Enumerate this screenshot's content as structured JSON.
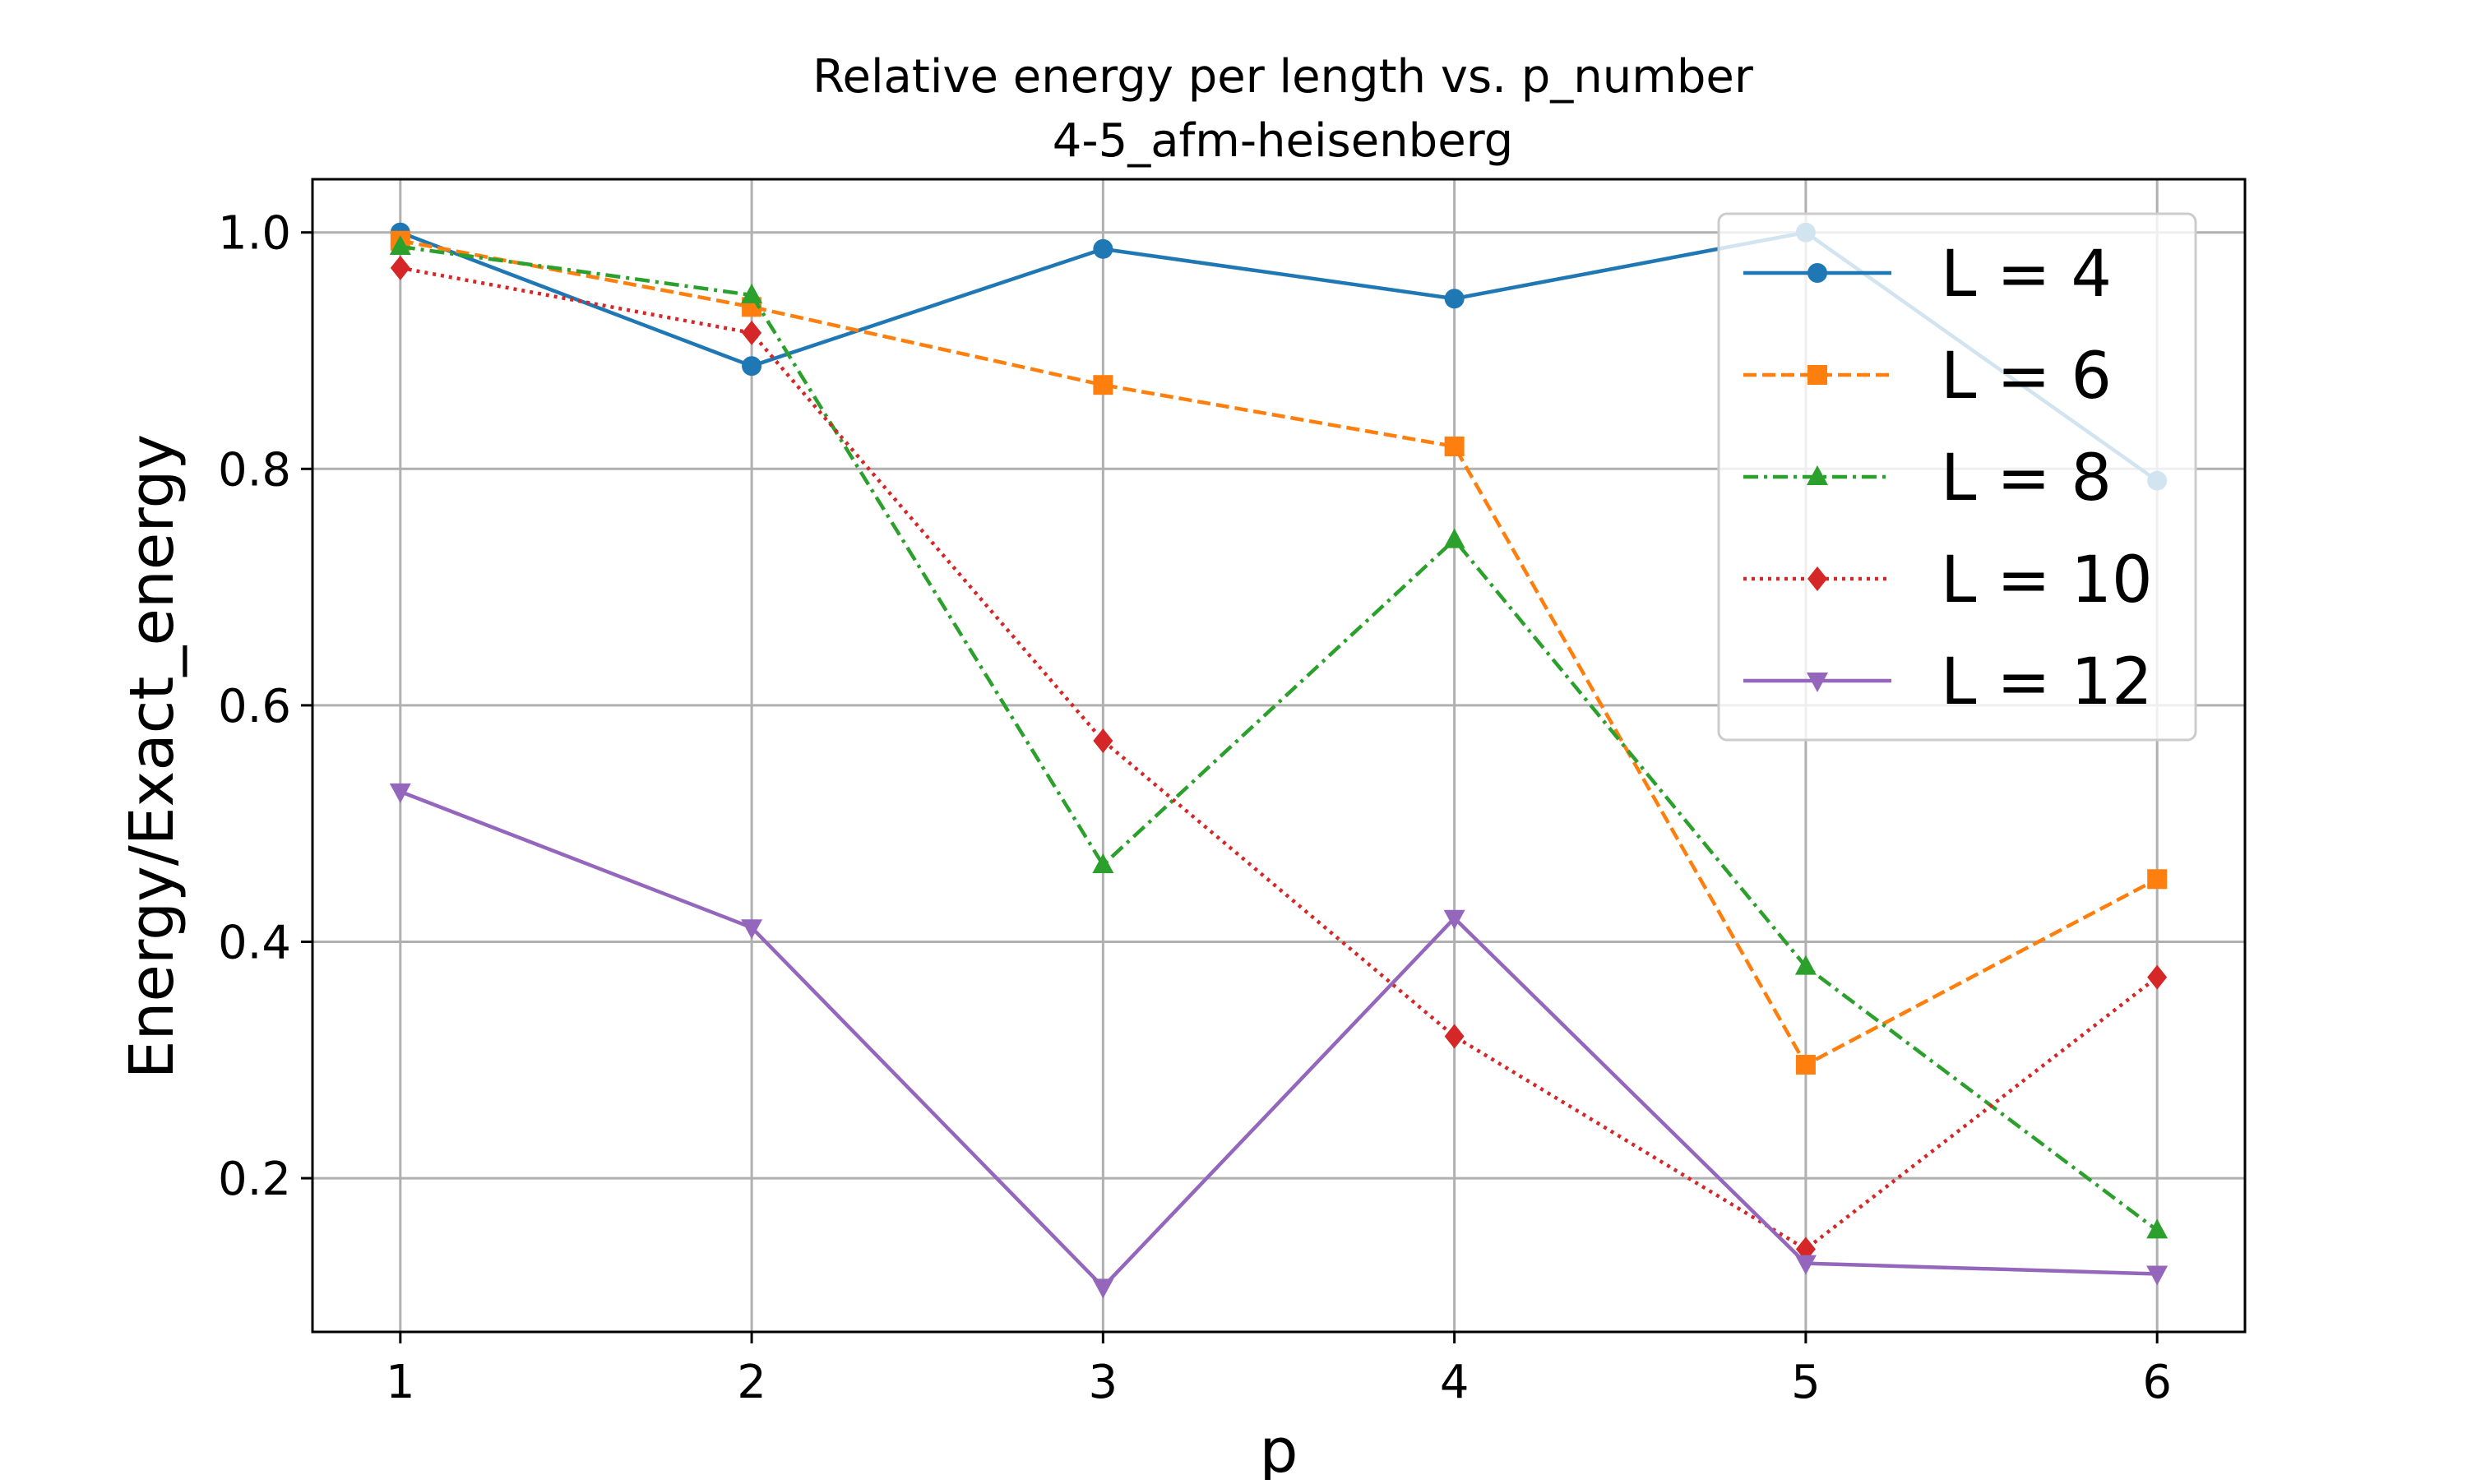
{
  "chart_data": {
    "type": "line",
    "title": "Relative energy per length vs. p_number",
    "subtitle": "4-5_afm-heisenberg",
    "xlabel": "p",
    "ylabel": "Energy/Exact_energy",
    "x": [
      1,
      2,
      3,
      4,
      5,
      6
    ],
    "xlim": [
      0.75,
      6.25
    ],
    "ylim": [
      0.07,
      1.045
    ],
    "x_ticks": [
      "1",
      "2",
      "3",
      "4",
      "5",
      "6"
    ],
    "y_ticks": [
      "0.2",
      "0.4",
      "0.6",
      "0.8",
      "1.0"
    ],
    "grid": true,
    "legend_position": "top-right",
    "series": [
      {
        "name": "L = 4",
        "color": "#1f77b4",
        "line_style": "solid",
        "marker": "circle",
        "values": [
          1.0,
          0.887,
          0.986,
          0.944,
          1.0,
          0.79
        ]
      },
      {
        "name": "L = 6",
        "color": "#ff7f0e",
        "line_style": "dashed",
        "marker": "square",
        "values": [
          0.993,
          0.937,
          0.871,
          0.819,
          0.296,
          0.453
        ]
      },
      {
        "name": "L = 8",
        "color": "#2ca02c",
        "line_style": "dashdot",
        "marker": "triangle-up",
        "values": [
          0.988,
          0.947,
          0.465,
          0.74,
          0.379,
          0.156
        ]
      },
      {
        "name": "L = 10",
        "color": "#d62728",
        "line_style": "dotted",
        "marker": "diamond",
        "values": [
          0.97,
          0.915,
          0.57,
          0.32,
          0.14,
          0.37
        ]
      },
      {
        "name": "L = 12",
        "color": "#9467bd",
        "line_style": "solid",
        "marker": "triangle-down",
        "values": [
          0.527,
          0.412,
          0.108,
          0.42,
          0.128,
          0.119
        ]
      }
    ]
  }
}
